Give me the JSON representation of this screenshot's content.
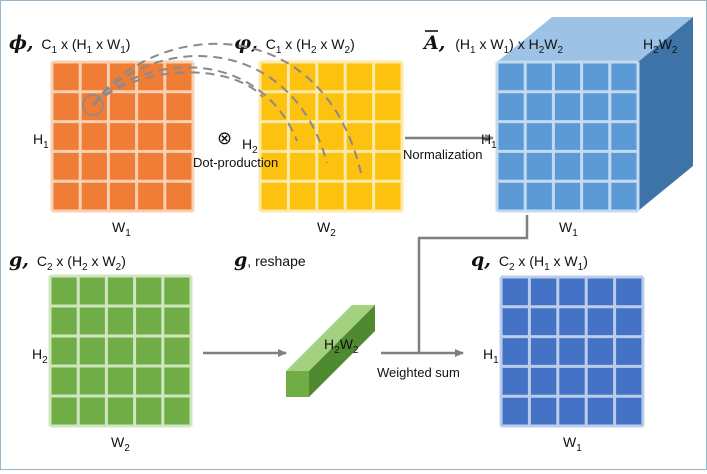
{
  "colors": {
    "phi": "#ef7d35",
    "varphi": "#fdc10f",
    "A": "#5b9ad4",
    "A_side": "#3e73a8",
    "A_top": "#9cc3e6",
    "g": "#70ad47",
    "g_side": "#4f8a30",
    "g_top": "#a4d17f",
    "q": "#4472c4",
    "grid_line_light": "#f1f1f1",
    "arrow": "#7f7f7f",
    "dashed": "#8a8a8a"
  },
  "labels": {
    "phi_symbol": "ϕ,",
    "phi_dims_pre": "C",
    "phi_dims_sub1": "1",
    "phi_dims_mid": " x (H",
    "phi_dims_sub2": "1",
    "phi_dims_mid2": " x W",
    "phi_dims_sub3": "1",
    "phi_dims_post": ")",
    "phi_H": "H",
    "phi_H_sub": "1",
    "phi_W": "W",
    "phi_W_sub": "1",
    "varphi_symbol": "φ,",
    "varphi_dims_pre": "C",
    "varphi_dims_sub1": "1",
    "varphi_dims_mid": " x (H",
    "varphi_dims_sub2": "2",
    "varphi_dims_mid2": " x W",
    "varphi_dims_sub3": "2",
    "varphi_dims_post": ")",
    "varphi_H": "H",
    "varphi_H_sub": "2",
    "varphi_W": "W",
    "varphi_W_sub": "2",
    "otimes": "⊗",
    "dot_production": "Dot-production",
    "A_symbol": "A",
    "A_comma": ",",
    "A_dims_1": "(H",
    "A_dims_sub1": "1",
    "A_dims_2": " x W",
    "A_dims_sub2": "1",
    "A_dims_3": ") x H",
    "A_dims_sub3": "2",
    "A_dims_4": "W",
    "A_dims_sub4": "2",
    "A_side_H": "H",
    "A_side_H_sub": "2",
    "A_side_W": "W",
    "A_side_W_sub": "2",
    "A_H": "H",
    "A_H_sub": "1",
    "A_W": "W",
    "A_W_sub": "1",
    "normalization": "Normalization",
    "g_symbol": "g",
    "g_comma": ",",
    "g_dims_pre": "C",
    "g_dims_sub1": "2",
    "g_dims_mid": " x (H",
    "g_dims_sub2": "2",
    "g_dims_mid2": " x W",
    "g_dims_sub3": "2",
    "g_dims_post": ")",
    "g_H": "H",
    "g_H_sub": "2",
    "g_W": "W",
    "g_W_sub": "2",
    "reshape_symbol": "g",
    "reshape_text": ", reshape",
    "bar_H": "H",
    "bar_H_sub": "2",
    "bar_W": "W",
    "bar_W_sub": "2",
    "weighted_sum": "Weighted sum",
    "q_symbol": "q",
    "q_comma": ",",
    "q_dims_pre": "C",
    "q_dims_sub1": "2",
    "q_dims_mid": " x (H",
    "q_dims_sub2": "1",
    "q_dims_mid2": " x W",
    "q_dims_sub3": "1",
    "q_dims_post": ")",
    "q_H": "H",
    "q_H_sub": "1",
    "q_W": "W",
    "q_W_sub": "1"
  }
}
